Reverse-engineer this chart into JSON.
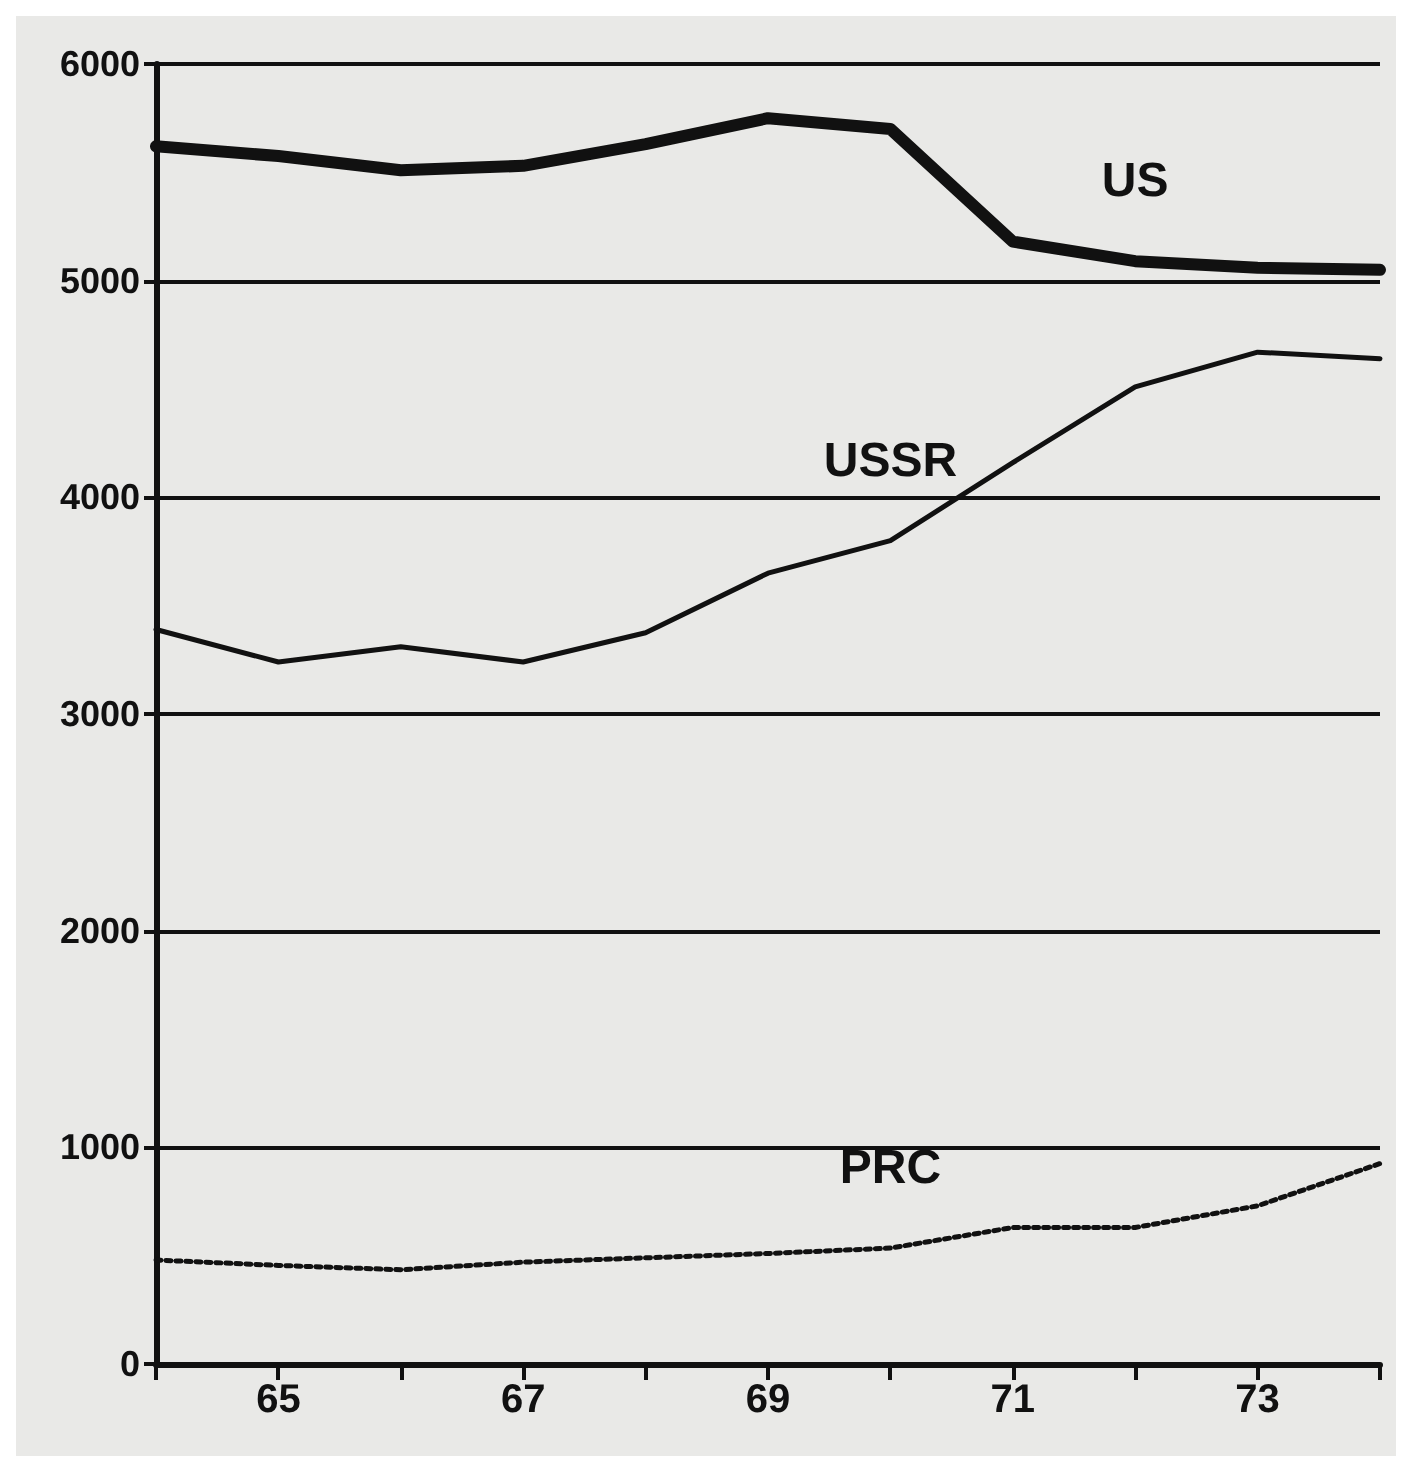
{
  "chart_data": {
    "type": "line",
    "x": [
      64,
      65,
      66,
      67,
      68,
      69,
      70,
      71,
      72,
      73,
      74
    ],
    "series": [
      {
        "name": "US",
        "color": "#111111",
        "line_style": "solid",
        "values": [
          5620,
          5575,
          5510,
          5530,
          5630,
          5750,
          5700,
          5180,
          5090,
          5060,
          5050
        ]
      },
      {
        "name": "USSR",
        "color": "#111111",
        "line_style": "solid",
        "values": [
          3390,
          3240,
          3310,
          3240,
          3375,
          3650,
          3800,
          4160,
          4510,
          4670,
          4640
        ]
      },
      {
        "name": "PRC",
        "color": "#111111",
        "line_style": "dotted",
        "values": [
          480,
          455,
          435,
          470,
          490,
          510,
          535,
          630,
          630,
          730,
          925
        ]
      }
    ],
    "xlim": [
      64,
      74
    ],
    "xticks": [
      {
        "value": 64,
        "label": null
      },
      65,
      {
        "value": 66,
        "label": null
      },
      67,
      {
        "value": 68,
        "label": null
      },
      69,
      {
        "value": 70,
        "label": null
      },
      71,
      {
        "value": 72,
        "label": null
      },
      73,
      {
        "value": 74,
        "label": null
      }
    ],
    "ylim": [
      0,
      6000
    ],
    "yticks": [
      0,
      1000,
      2000,
      3000,
      4000,
      5000,
      6000
    ],
    "grid": "y",
    "legend": false,
    "marker": "none"
  }
}
